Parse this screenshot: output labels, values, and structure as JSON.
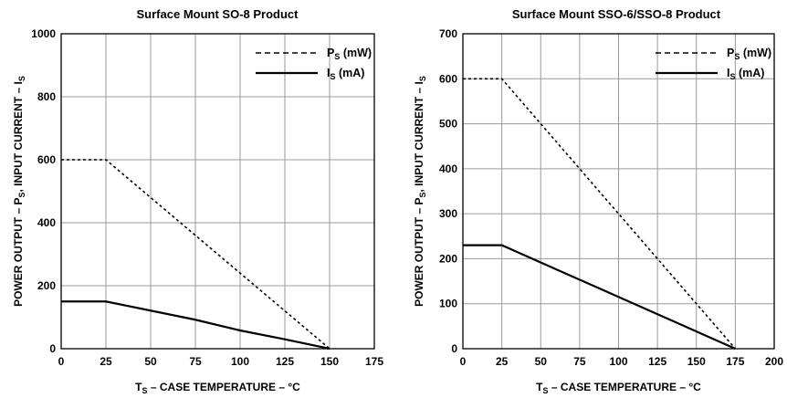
{
  "chart_data": [
    {
      "type": "line",
      "title": "Surface Mount SO-8 Product",
      "xlabel": {
        "pre": "T",
        "sub": "S",
        "post": " – CASE TEMPERATURE – °C"
      },
      "ylabel": {
        "parts": [
          {
            "t": "POWER OUTPUT – P",
            "sub": false
          },
          {
            "t": "S",
            "sub": true
          },
          {
            "t": ", INPUT CURRENT – I",
            "sub": false
          },
          {
            "t": "S",
            "sub": true
          }
        ]
      },
      "xlim": [
        0,
        175
      ],
      "ylim": [
        0,
        1000
      ],
      "xticks": [
        0,
        25,
        50,
        75,
        100,
        125,
        150,
        175
      ],
      "yticks": [
        0,
        200,
        400,
        600,
        800,
        1000
      ],
      "grid": true,
      "legend_position": "top-right",
      "series": [
        {
          "name": {
            "main": "P",
            "sub": "S",
            "rest": " (mW)"
          },
          "style": "dashed",
          "points": [
            [
              0,
              600
            ],
            [
              25,
              600
            ],
            [
              150,
              0
            ]
          ]
        },
        {
          "name": {
            "main": "I",
            "sub": "S",
            "rest": " (mA)"
          },
          "style": "solid",
          "points": [
            [
              0,
              150
            ],
            [
              25,
              150
            ],
            [
              75,
              92
            ],
            [
              100,
              58
            ],
            [
              125,
              30
            ],
            [
              150,
              0
            ]
          ]
        }
      ]
    },
    {
      "type": "line",
      "title": "Surface Mount SSO-6/SSO-8 Product",
      "xlabel": {
        "pre": "T",
        "sub": "S",
        "post": " – CASE TEMPERATURE – °C"
      },
      "ylabel": {
        "parts": [
          {
            "t": "POWER OUTPUT – P",
            "sub": false
          },
          {
            "t": "S",
            "sub": true
          },
          {
            "t": ", INPUT CURRENT – I",
            "sub": false
          },
          {
            "t": "S",
            "sub": true
          }
        ]
      },
      "xlim": [
        0,
        200
      ],
      "ylim": [
        0,
        700
      ],
      "xticks": [
        0,
        25,
        50,
        75,
        100,
        125,
        150,
        175,
        200
      ],
      "yticks": [
        0,
        100,
        200,
        300,
        400,
        500,
        600,
        700
      ],
      "grid": true,
      "legend_position": "top-right",
      "series": [
        {
          "name": {
            "main": "P",
            "sub": "S",
            "rest": " (mW)"
          },
          "style": "dashed",
          "points": [
            [
              0,
              600
            ],
            [
              25,
              600
            ],
            [
              175,
              0
            ]
          ]
        },
        {
          "name": {
            "main": "I",
            "sub": "S",
            "rest": " (mA)"
          },
          "style": "solid",
          "points": [
            [
              0,
              230
            ],
            [
              25,
              230
            ],
            [
              175,
              0
            ]
          ]
        }
      ]
    }
  ]
}
